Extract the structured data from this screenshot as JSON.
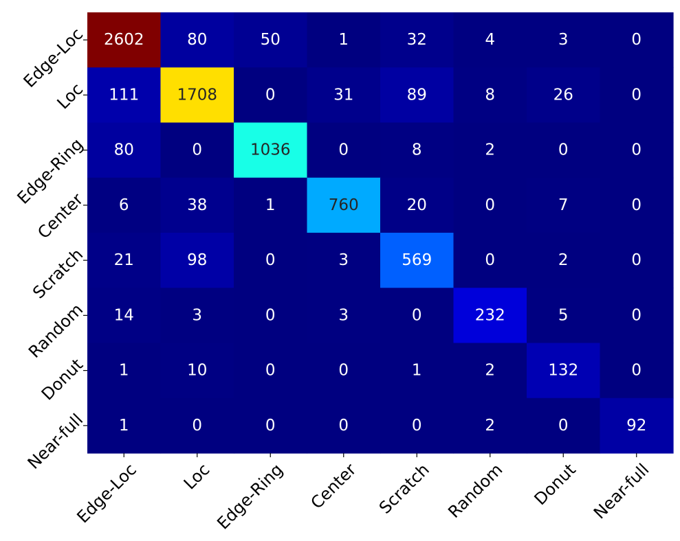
{
  "chart_data": {
    "type": "heatmap",
    "title": "",
    "xlabel": "",
    "ylabel": "",
    "colormap": "jet",
    "value_range": [
      0,
      2602
    ],
    "x_categories": [
      "Edge-Loc",
      "Loc",
      "Edge-Ring",
      "Center",
      "Scratch",
      "Random",
      "Donut",
      "Near-full"
    ],
    "y_categories": [
      "Edge-Loc",
      "Loc",
      "Edge-Ring",
      "Center",
      "Scratch",
      "Random",
      "Donut",
      "Near-full"
    ],
    "values": [
      [
        2602,
        80,
        50,
        1,
        32,
        4,
        3,
        0
      ],
      [
        111,
        1708,
        0,
        31,
        89,
        8,
        26,
        0
      ],
      [
        80,
        0,
        1036,
        0,
        8,
        2,
        0,
        0
      ],
      [
        6,
        38,
        1,
        760,
        20,
        0,
        7,
        0
      ],
      [
        21,
        98,
        0,
        3,
        569,
        0,
        2,
        0
      ],
      [
        14,
        3,
        0,
        3,
        0,
        232,
        5,
        0
      ],
      [
        1,
        10,
        0,
        0,
        1,
        2,
        132,
        0
      ],
      [
        1,
        0,
        0,
        0,
        0,
        2,
        0,
        92
      ]
    ]
  }
}
